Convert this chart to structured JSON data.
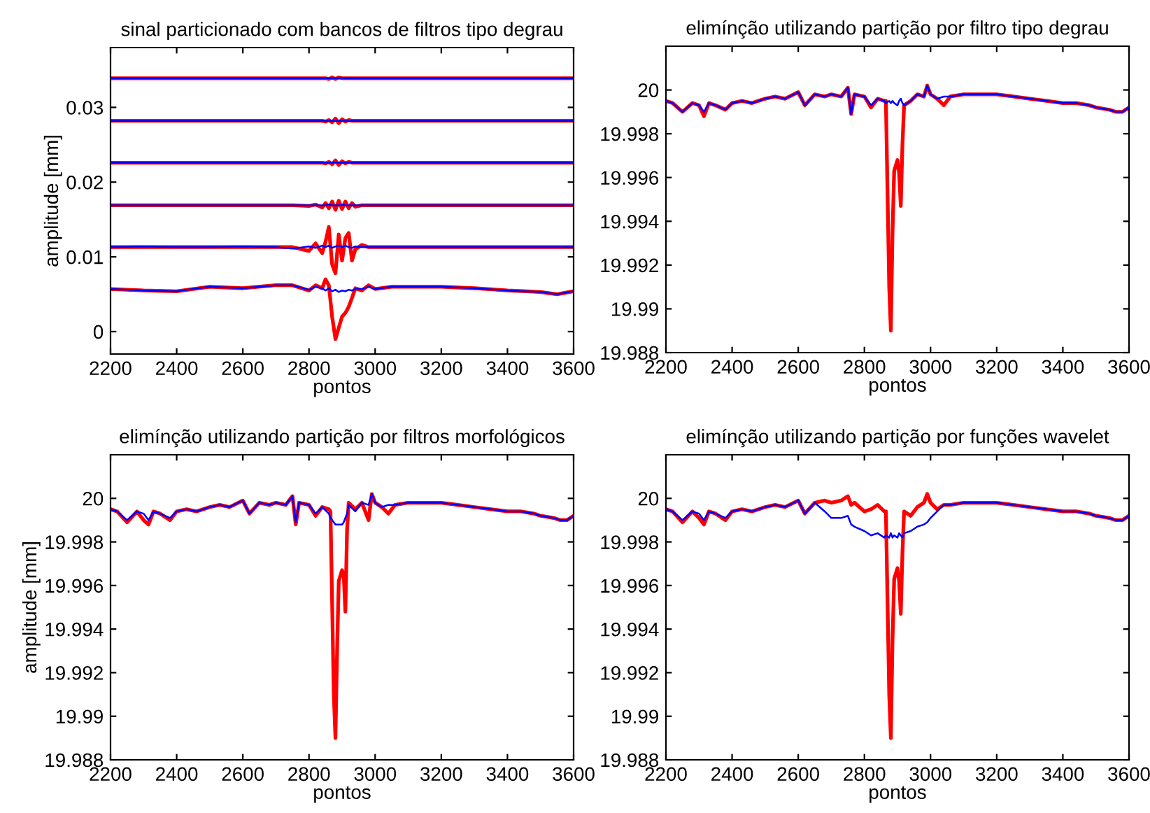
{
  "chart_data": [
    {
      "type": "line",
      "title": "sinal particionado com bancos de filtros tipo degrau",
      "xlabel": "pontos",
      "ylabel": "amplitude [mm]",
      "xlim": [
        2200,
        3600
      ],
      "ylim": [
        -0.003,
        0.038
      ],
      "xticks": [
        2200,
        2400,
        2600,
        2800,
        3000,
        3200,
        3400,
        3600
      ],
      "yticks": [
        0,
        0.01,
        0.02,
        0.03
      ],
      "x": [
        2200,
        2300,
        2400,
        2500,
        2600,
        2700,
        2750,
        2800,
        2820,
        2840,
        2850,
        2860,
        2870,
        2880,
        2890,
        2900,
        2910,
        2920,
        2930,
        2940,
        2960,
        2980,
        3000,
        3050,
        3100,
        3200,
        3300,
        3400,
        3500,
        3550,
        3600
      ],
      "series": [
        {
          "color": "#ff0000",
          "values": [
            0.0339,
            0.0339,
            0.0339,
            0.0339,
            0.0339,
            0.0339,
            0.0339,
            0.0339,
            0.0339,
            0.0339,
            0.0339,
            0.0338,
            0.034,
            0.0338,
            0.034,
            0.0339,
            0.0339,
            0.0339,
            0.0339,
            0.0339,
            0.0339,
            0.0339,
            0.0339,
            0.0339,
            0.0339,
            0.0339,
            0.0339,
            0.0339,
            0.0339,
            0.0339,
            0.0339
          ]
        },
        {
          "color": "#0000ff",
          "values": [
            0.0339,
            0.0339,
            0.0339,
            0.0339,
            0.0339,
            0.0339,
            0.0339,
            0.0339,
            0.0339,
            0.0339,
            0.0339,
            0.0339,
            0.0339,
            0.0339,
            0.0339,
            0.0339,
            0.0339,
            0.0339,
            0.0339,
            0.0339,
            0.0339,
            0.0339,
            0.0339,
            0.0339,
            0.0339,
            0.0339,
            0.0339,
            0.0339,
            0.0339,
            0.0339,
            0.0339
          ]
        },
        {
          "color": "#ff0000",
          "values": [
            0.0282,
            0.0282,
            0.0282,
            0.0282,
            0.0282,
            0.0282,
            0.0282,
            0.0282,
            0.0282,
            0.0282,
            0.0281,
            0.0283,
            0.028,
            0.0285,
            0.0279,
            0.0284,
            0.0281,
            0.0283,
            0.0282,
            0.0282,
            0.0282,
            0.0282,
            0.0282,
            0.0282,
            0.0282,
            0.0282,
            0.0282,
            0.0282,
            0.0282,
            0.0282,
            0.0282
          ]
        },
        {
          "color": "#0000ff",
          "values": [
            0.0282,
            0.0282,
            0.0282,
            0.0282,
            0.0282,
            0.0282,
            0.0282,
            0.0282,
            0.0282,
            0.0282,
            0.0282,
            0.0282,
            0.0282,
            0.0282,
            0.0282,
            0.0282,
            0.0282,
            0.0282,
            0.0282,
            0.0282,
            0.0282,
            0.0282,
            0.0282,
            0.0282,
            0.0282,
            0.0282,
            0.0282,
            0.0282,
            0.0282,
            0.0282,
            0.0282
          ]
        },
        {
          "color": "#ff0000",
          "values": [
            0.0226,
            0.0226,
            0.0226,
            0.0226,
            0.0226,
            0.0226,
            0.0226,
            0.0226,
            0.0226,
            0.0226,
            0.0225,
            0.0227,
            0.0224,
            0.0229,
            0.0223,
            0.0228,
            0.0225,
            0.0227,
            0.0226,
            0.0226,
            0.0226,
            0.0226,
            0.0226,
            0.0226,
            0.0226,
            0.0226,
            0.0226,
            0.0226,
            0.0226,
            0.0226,
            0.0226
          ]
        },
        {
          "color": "#0000ff",
          "values": [
            0.0226,
            0.0226,
            0.0226,
            0.0226,
            0.0226,
            0.0226,
            0.0226,
            0.0226,
            0.0226,
            0.0226,
            0.0226,
            0.0226,
            0.0226,
            0.0226,
            0.0226,
            0.0226,
            0.0226,
            0.0226,
            0.0226,
            0.0226,
            0.0226,
            0.0226,
            0.0226,
            0.0226,
            0.0226,
            0.0226,
            0.0226,
            0.0226,
            0.0226,
            0.0226,
            0.0226
          ]
        },
        {
          "color": "#ff0000",
          "values": [
            0.0169,
            0.0169,
            0.0169,
            0.0169,
            0.0169,
            0.0169,
            0.0169,
            0.0168,
            0.017,
            0.0166,
            0.0172,
            0.0165,
            0.0174,
            0.0163,
            0.0175,
            0.0164,
            0.0174,
            0.0165,
            0.0172,
            0.0167,
            0.0169,
            0.0169,
            0.0169,
            0.0169,
            0.0169,
            0.0169,
            0.0169,
            0.0169,
            0.0169,
            0.0169,
            0.0169
          ]
        },
        {
          "color": "#0000ff",
          "values": [
            0.0169,
            0.0169,
            0.0169,
            0.0169,
            0.0169,
            0.0169,
            0.0169,
            0.0169,
            0.0169,
            0.0169,
            0.0169,
            0.017,
            0.0169,
            0.0169,
            0.0169,
            0.017,
            0.0169,
            0.0169,
            0.0169,
            0.0169,
            0.0169,
            0.0169,
            0.0169,
            0.0169,
            0.0169,
            0.0169,
            0.0169,
            0.0169,
            0.0169,
            0.0169,
            0.0169
          ]
        },
        {
          "color": "#ff0000",
          "values": [
            0.0113,
            0.0113,
            0.0113,
            0.0113,
            0.0113,
            0.0113,
            0.0113,
            0.0108,
            0.0118,
            0.0105,
            0.012,
            0.014,
            0.009,
            0.0078,
            0.013,
            0.0095,
            0.0125,
            0.0132,
            0.0095,
            0.011,
            0.0116,
            0.0113,
            0.0113,
            0.0113,
            0.0113,
            0.0113,
            0.0113,
            0.0113,
            0.0113,
            0.0113,
            0.0113
          ]
        },
        {
          "color": "#0000ff",
          "values": [
            0.0113,
            0.0114,
            0.0113,
            0.0113,
            0.0114,
            0.0113,
            0.0111,
            0.0114,
            0.0112,
            0.0115,
            0.0113,
            0.0115,
            0.0112,
            0.0114,
            0.0115,
            0.0113,
            0.0115,
            0.0113,
            0.0112,
            0.0114,
            0.0113,
            0.0113,
            0.0113,
            0.0113,
            0.0113,
            0.0113,
            0.0113,
            0.0113,
            0.0113,
            0.0113,
            0.0113
          ]
        },
        {
          "color": "#ff0000",
          "values": [
            0.0057,
            0.0055,
            0.0054,
            0.006,
            0.0058,
            0.0062,
            0.0062,
            0.0055,
            0.0062,
            0.0058,
            0.007,
            0.0062,
            0.002,
            -0.001,
            0.0005,
            0.002,
            0.0025,
            0.0033,
            0.0045,
            0.0058,
            0.0055,
            0.0062,
            0.0057,
            0.006,
            0.006,
            0.006,
            0.0058,
            0.0055,
            0.0053,
            0.005,
            0.0054
          ]
        },
        {
          "color": "#0000ff",
          "values": [
            0.0057,
            0.0055,
            0.0054,
            0.006,
            0.0058,
            0.0062,
            0.0062,
            0.0056,
            0.006,
            0.0058,
            0.0055,
            0.0058,
            0.0054,
            0.0056,
            0.0053,
            0.0055,
            0.0054,
            0.0056,
            0.0055,
            0.0057,
            0.0057,
            0.006,
            0.0057,
            0.006,
            0.006,
            0.006,
            0.0058,
            0.0055,
            0.0053,
            0.005,
            0.0054
          ]
        }
      ]
    },
    {
      "type": "line",
      "title": "elimínção utilizando partição por filtro tipo degrau",
      "xlabel": "pontos",
      "xlim": [
        2200,
        3600
      ],
      "ylim": [
        19.988,
        20.002
      ],
      "xticks": [
        2200,
        2400,
        2600,
        2800,
        3000,
        3200,
        3400,
        3600
      ],
      "yticks": [
        19.988,
        19.99,
        19.992,
        19.994,
        19.996,
        19.998,
        20
      ],
      "x": [
        2200,
        2220,
        2250,
        2280,
        2300,
        2315,
        2330,
        2350,
        2380,
        2400,
        2430,
        2460,
        2500,
        2530,
        2560,
        2600,
        2620,
        2650,
        2680,
        2700,
        2730,
        2750,
        2760,
        2770,
        2800,
        2820,
        2840,
        2860,
        2865,
        2875,
        2880,
        2885,
        2890,
        2900,
        2905,
        2910,
        2915,
        2920,
        2940,
        2960,
        2980,
        2990,
        3000,
        3020,
        3040,
        3060,
        3100,
        3150,
        3200,
        3250,
        3300,
        3350,
        3400,
        3440,
        3480,
        3500,
        3540,
        3560,
        3580,
        3600
      ],
      "series": [
        {
          "color": "#ff0000",
          "values": [
            19.9995,
            19.9994,
            19.999,
            19.9994,
            19.9993,
            19.9988,
            19.9994,
            19.9993,
            19.9991,
            19.9994,
            19.9995,
            19.9994,
            19.9996,
            19.9997,
            19.9996,
            19.9999,
            19.9993,
            19.9998,
            19.9997,
            19.9998,
            19.9997,
            20.0001,
            19.9989,
            19.9998,
            19.9997,
            19.9992,
            19.9996,
            19.9995,
            19.9995,
            19.991,
            19.989,
            19.9935,
            19.9963,
            19.9968,
            19.9962,
            19.9947,
            19.9975,
            19.9993,
            19.9995,
            19.9998,
            19.9997,
            20.0002,
            19.9998,
            19.9996,
            19.9993,
            19.9997,
            19.9998,
            19.9998,
            19.9998,
            19.9997,
            19.9996,
            19.9995,
            19.9994,
            19.9994,
            19.9993,
            19.9992,
            19.9991,
            19.999,
            19.999,
            19.9992
          ]
        },
        {
          "color": "#0000ff",
          "values": [
            19.9995,
            19.9994,
            19.999,
            19.9994,
            19.9993,
            19.999,
            19.9994,
            19.9993,
            19.9991,
            19.9994,
            19.9995,
            19.9994,
            19.9996,
            19.9997,
            19.9996,
            19.9999,
            19.9993,
            19.9998,
            19.9997,
            19.9998,
            19.9997,
            20.0001,
            19.9989,
            19.9998,
            19.9997,
            19.9993,
            19.9996,
            19.9995,
            19.9994,
            19.9995,
            19.9994,
            19.9995,
            19.9994,
            19.9993,
            19.9995,
            19.9996,
            19.9994,
            19.9993,
            19.9995,
            19.9998,
            19.9997,
            20.0002,
            19.9998,
            19.9996,
            19.9997,
            19.9997,
            19.9998,
            19.9998,
            19.9998,
            19.9997,
            19.9996,
            19.9995,
            19.9994,
            19.9994,
            19.9993,
            19.9992,
            19.9991,
            19.999,
            19.999,
            19.9992
          ]
        }
      ]
    },
    {
      "type": "line",
      "title": "elimínção utilizando partição por filtros morfológicos",
      "xlabel": "pontos",
      "ylabel": "amplitude [mm]",
      "xlim": [
        2200,
        3600
      ],
      "ylim": [
        19.988,
        20.002
      ],
      "xticks": [
        2200,
        2400,
        2600,
        2800,
        3000,
        3200,
        3400,
        3600
      ],
      "yticks": [
        19.988,
        19.99,
        19.992,
        19.994,
        19.996,
        19.998,
        20
      ],
      "x": [
        2200,
        2220,
        2250,
        2280,
        2300,
        2315,
        2330,
        2350,
        2380,
        2400,
        2430,
        2460,
        2500,
        2530,
        2560,
        2600,
        2620,
        2650,
        2680,
        2700,
        2730,
        2750,
        2760,
        2770,
        2800,
        2820,
        2840,
        2860,
        2865,
        2875,
        2880,
        2885,
        2890,
        2900,
        2905,
        2910,
        2915,
        2920,
        2940,
        2960,
        2980,
        2990,
        3000,
        3020,
        3040,
        3060,
        3100,
        3150,
        3200,
        3250,
        3300,
        3350,
        3400,
        3440,
        3480,
        3500,
        3540,
        3560,
        3580,
        3600
      ],
      "series": [
        {
          "color": "#ff0000",
          "values": [
            19.9995,
            19.9994,
            19.9989,
            19.9994,
            19.999,
            19.9988,
            19.9994,
            19.9993,
            19.999,
            19.9994,
            19.9995,
            19.9994,
            19.9996,
            19.9997,
            19.9996,
            19.9999,
            19.9993,
            19.9998,
            19.9997,
            19.9998,
            19.9997,
            20.0001,
            19.9988,
            19.9998,
            19.9997,
            19.9992,
            19.9996,
            19.9995,
            19.9994,
            19.991,
            19.989,
            19.993,
            19.9962,
            19.9967,
            19.9965,
            19.9948,
            19.9985,
            19.9998,
            19.9995,
            19.9998,
            19.999,
            20.0002,
            19.9998,
            19.9996,
            19.9993,
            19.9997,
            19.9998,
            19.9998,
            19.9998,
            19.9997,
            19.9996,
            19.9995,
            19.9994,
            19.9994,
            19.9993,
            19.9992,
            19.9991,
            19.999,
            19.999,
            19.9992
          ]
        },
        {
          "color": "#0000ff",
          "values": [
            19.9995,
            19.9994,
            19.999,
            19.9994,
            19.9993,
            19.999,
            19.9994,
            19.9993,
            19.9991,
            19.9994,
            19.9995,
            19.9994,
            19.9996,
            19.9997,
            19.9996,
            19.9999,
            19.9993,
            19.9998,
            19.9997,
            19.9998,
            19.9997,
            20.0001,
            19.9989,
            19.9998,
            19.9997,
            19.9993,
            19.9996,
            19.9993,
            19.9991,
            19.9989,
            19.9988,
            19.9988,
            19.9988,
            19.9988,
            19.9989,
            19.9991,
            19.9993,
            19.9997,
            19.9994,
            19.9998,
            19.9997,
            20.0002,
            19.9998,
            19.9996,
            19.9997,
            19.9997,
            19.9998,
            19.9998,
            19.9998,
            19.9997,
            19.9996,
            19.9995,
            19.9994,
            19.9994,
            19.9993,
            19.9992,
            19.9991,
            19.999,
            19.999,
            19.9992
          ]
        }
      ]
    },
    {
      "type": "line",
      "title": "elimínção utilizando partição por funções wavelet",
      "xlabel": "pontos",
      "xlim": [
        2200,
        3600
      ],
      "ylim": [
        19.988,
        20.002
      ],
      "xticks": [
        2200,
        2400,
        2600,
        2800,
        3000,
        3200,
        3400,
        3600
      ],
      "yticks": [
        19.988,
        19.99,
        19.992,
        19.994,
        19.996,
        19.998,
        20
      ],
      "x": [
        2200,
        2220,
        2250,
        2280,
        2300,
        2315,
        2330,
        2350,
        2380,
        2400,
        2430,
        2460,
        2500,
        2530,
        2560,
        2600,
        2620,
        2650,
        2680,
        2700,
        2730,
        2750,
        2760,
        2770,
        2800,
        2820,
        2840,
        2860,
        2865,
        2875,
        2880,
        2885,
        2890,
        2900,
        2905,
        2910,
        2915,
        2920,
        2940,
        2960,
        2980,
        2990,
        3000,
        3020,
        3040,
        3060,
        3100,
        3150,
        3200,
        3250,
        3300,
        3350,
        3400,
        3440,
        3480,
        3500,
        3540,
        3560,
        3580,
        3600
      ],
      "series": [
        {
          "color": "#ff0000",
          "values": [
            19.9995,
            19.9994,
            19.9989,
            19.9994,
            19.9991,
            19.9988,
            19.9994,
            19.9993,
            19.999,
            19.9994,
            19.9995,
            19.9994,
            19.9996,
            19.9997,
            19.9996,
            19.9999,
            19.9993,
            19.9998,
            19.9999,
            19.9998,
            19.9999,
            20.0001,
            19.9997,
            19.9998,
            19.9994,
            19.9995,
            19.9997,
            19.9994,
            19.9994,
            19.991,
            19.989,
            19.9935,
            19.9963,
            19.9968,
            19.9962,
            19.9947,
            19.9975,
            19.9994,
            19.9992,
            19.9996,
            19.9998,
            20.0002,
            19.9998,
            19.9995,
            19.9997,
            19.9997,
            19.9998,
            19.9998,
            19.9998,
            19.9997,
            19.9996,
            19.9995,
            19.9994,
            19.9994,
            19.9993,
            19.9992,
            19.9991,
            19.999,
            19.999,
            19.9992
          ]
        },
        {
          "color": "#0000ff",
          "values": [
            19.9995,
            19.9994,
            19.999,
            19.9994,
            19.9993,
            19.999,
            19.9994,
            19.9993,
            19.9991,
            19.9994,
            19.9995,
            19.9994,
            19.9996,
            19.9997,
            19.9996,
            19.9999,
            19.9993,
            19.9998,
            19.9994,
            19.9991,
            19.9991,
            19.9992,
            19.9988,
            19.9987,
            19.9985,
            19.9983,
            19.9984,
            19.9982,
            19.9983,
            19.9982,
            19.9984,
            19.9982,
            19.9983,
            19.9982,
            19.9984,
            19.9983,
            19.9982,
            19.9984,
            19.9985,
            19.9987,
            19.9988,
            19.9989,
            19.9991,
            19.9994,
            19.9997,
            19.9997,
            19.9998,
            19.9998,
            19.9998,
            19.9997,
            19.9996,
            19.9995,
            19.9994,
            19.9994,
            19.9993,
            19.9992,
            19.9991,
            19.999,
            19.999,
            19.9992
          ]
        }
      ]
    }
  ]
}
